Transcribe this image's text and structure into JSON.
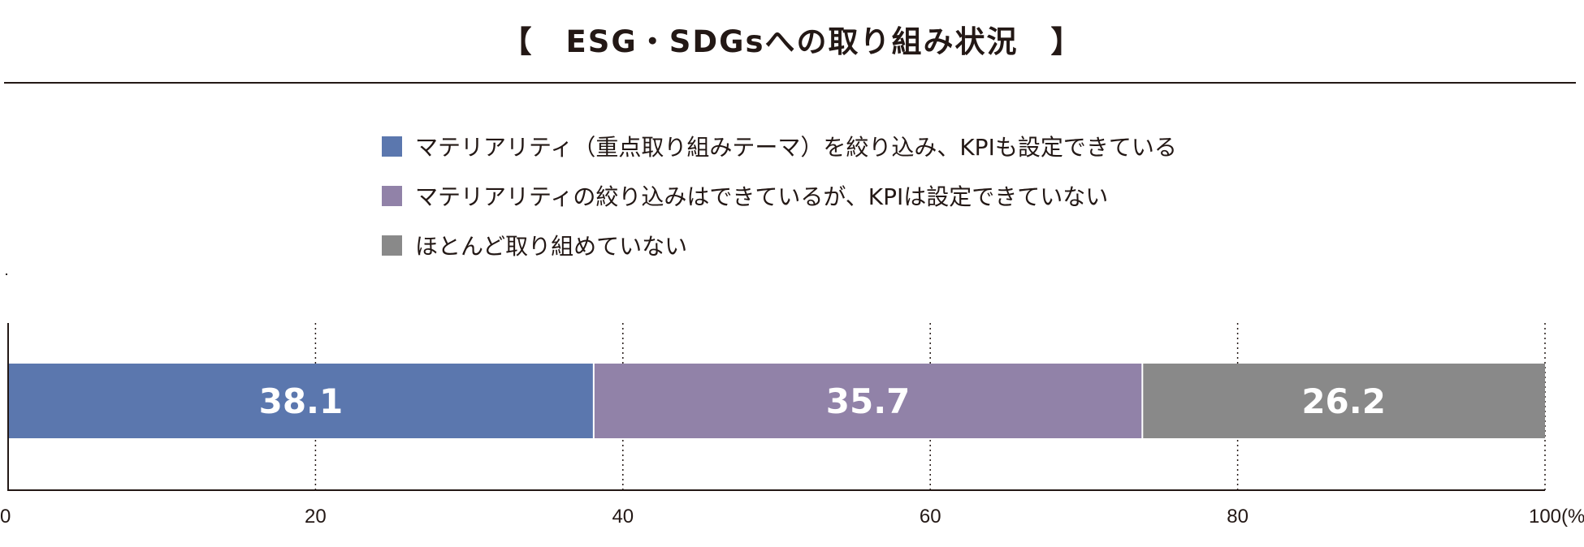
{
  "title": {
    "open_bracket": "【",
    "text": "ESG・SDGsへの取り組み状況",
    "close_bracket": "】"
  },
  "chart_data": {
    "type": "bar",
    "orientation": "horizontal-stacked",
    "series": [
      {
        "name": "マテリアリティ（重点取り組みテーマ）を絞り込み、KPIも設定できている",
        "value": 38.1,
        "color": "#5b77ae"
      },
      {
        "name": "マテリアリティの絞り込みはできているが、KPIは設定できていない",
        "value": 35.7,
        "color": "#9182a8"
      },
      {
        "name": "ほとんど取り組めていない",
        "value": 26.2,
        "color": "#898989"
      }
    ],
    "x_ticks": [
      "0",
      "20",
      "40",
      "60",
      "80",
      "100"
    ],
    "x_unit": "(%)",
    "xlim": [
      0,
      100
    ],
    "grid": "dotted vertical",
    "legend_position": "top"
  }
}
